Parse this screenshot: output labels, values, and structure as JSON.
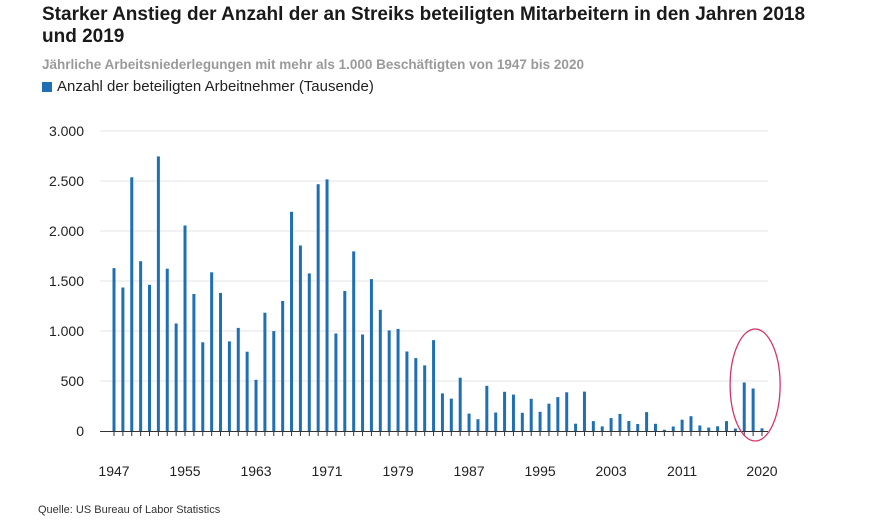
{
  "page": {
    "title": "Starker Anstieg der Anzahl der an Streiks beteiligten Mitarbeitern in den Jahren 2018 und 2019",
    "subtitle": "Jährliche Arbeitsniederlegungen mit mehr als 1.000 Beschäftigten von 1947 bis 2020",
    "source": "Quelle: US Bureau of Labor Statistics"
  },
  "colors": {
    "bar": "#1f6fb5",
    "grid": "#e6e6e6",
    "highlight": "#d6336c"
  },
  "chart_data": {
    "type": "bar",
    "title": "Starker Anstieg der Anzahl der an Streiks beteiligten Mitarbeitern in den Jahren 2018 und 2019",
    "subtitle": "Jährliche Arbeitsniederlegungen mit mehr als 1.000 Beschäftigten von 1947 bis 2020",
    "xlabel": "",
    "ylabel": "",
    "ylim": [
      0,
      3000
    ],
    "y_ticks": [
      0,
      500,
      1000,
      1500,
      2000,
      2500,
      3000
    ],
    "y_tick_labels": [
      "0",
      "500",
      "1.000",
      "1.500",
      "2.000",
      "2.500",
      "3.000"
    ],
    "x_tick_labels": [
      "1947",
      "1955",
      "1963",
      "1971",
      "1979",
      "1987",
      "1995",
      "2003",
      "2011",
      "2020"
    ],
    "x_tick_years": [
      1947,
      1955,
      1963,
      1971,
      1979,
      1987,
      1995,
      2003,
      2011,
      2020
    ],
    "grid": true,
    "legend": {
      "position": "top-left",
      "entries": [
        "Anzahl der beteiligten Arbeitnehmer (Tausende)"
      ]
    },
    "annotation": {
      "type": "ellipse",
      "years": [
        2018,
        2019,
        2020
      ],
      "description": "highlight"
    },
    "series": [
      {
        "name": "Anzahl der beteiligten Arbeitnehmer (Tausende)",
        "x": [
          1947,
          1948,
          1949,
          1950,
          1951,
          1952,
          1953,
          1954,
          1955,
          1956,
          1957,
          1958,
          1959,
          1960,
          1961,
          1962,
          1963,
          1964,
          1965,
          1966,
          1967,
          1968,
          1969,
          1970,
          1971,
          1972,
          1973,
          1974,
          1975,
          1976,
          1977,
          1978,
          1979,
          1980,
          1981,
          1982,
          1983,
          1984,
          1985,
          1986,
          1987,
          1988,
          1989,
          1990,
          1991,
          1992,
          1993,
          1994,
          1995,
          1996,
          1997,
          1998,
          1999,
          2000,
          2001,
          2002,
          2003,
          2004,
          2005,
          2006,
          2007,
          2008,
          2009,
          2010,
          2011,
          2012,
          2013,
          2014,
          2015,
          2016,
          2017,
          2018,
          2019,
          2020
        ],
        "values": [
          1629,
          1435,
          2537,
          1698,
          1462,
          2746,
          1623,
          1075,
          2055,
          1370,
          887,
          1587,
          1381,
          896,
          1031,
          793,
          512,
          1183,
          999,
          1300,
          2192,
          1855,
          1576,
          2468,
          2516,
          975,
          1400,
          1796,
          965,
          1519,
          1212,
          1006,
          1021,
          795,
          729,
          656,
          909,
          376,
          324,
          533,
          174,
          118,
          452,
          185,
          392,
          364,
          182,
          322,
          192,
          273,
          339,
          387,
          73,
          394,
          99,
          46,
          129,
          171,
          100,
          70,
          189,
          72,
          13,
          45,
          113,
          148,
          55,
          34,
          47,
          99,
          25,
          485,
          425,
          27
        ]
      }
    ]
  }
}
